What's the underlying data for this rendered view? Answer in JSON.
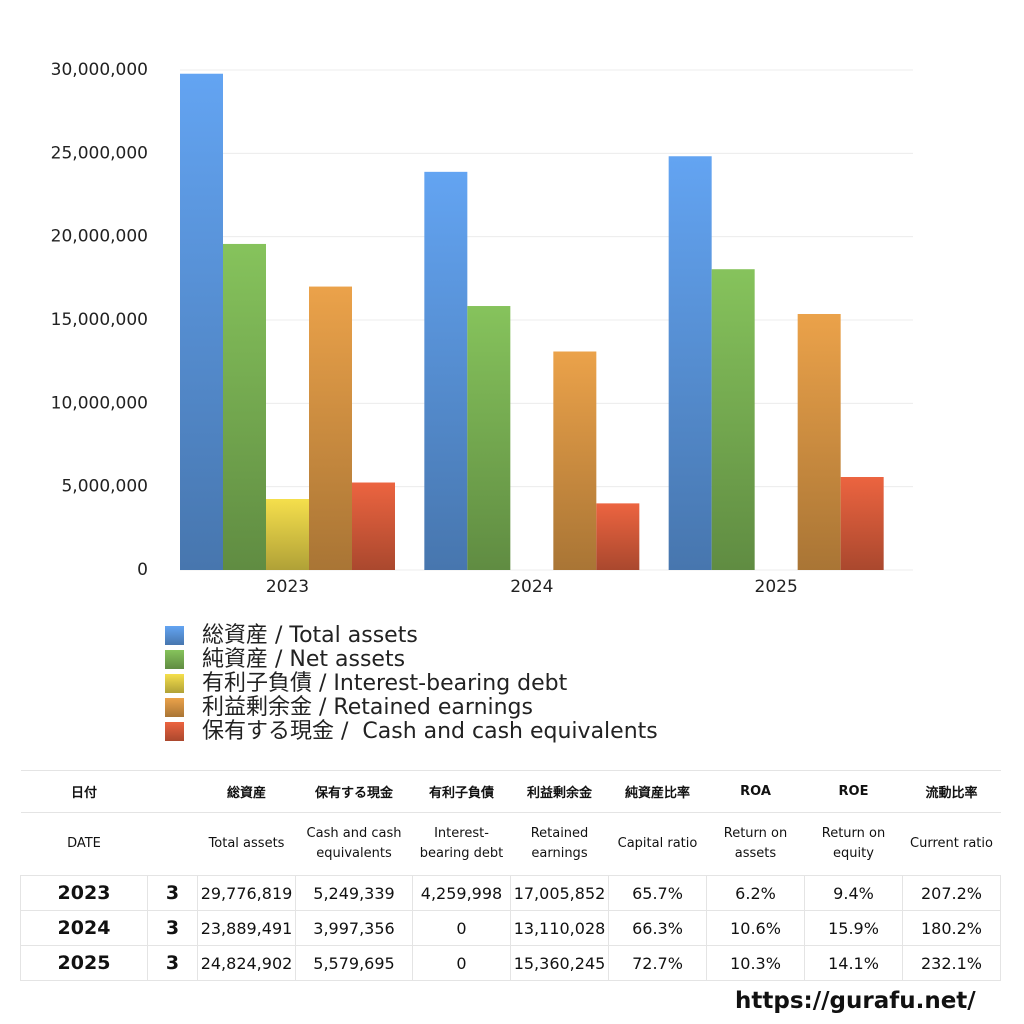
{
  "chart_data": {
    "type": "bar",
    "categories": [
      "2023",
      "2024",
      "2025"
    ],
    "series": [
      {
        "name": "総資産 / Total assets",
        "color": "#63a4f2",
        "values": [
          29776819,
          23889491,
          24824902
        ]
      },
      {
        "name": "純資産 / Net assets",
        "color": "#86c35c",
        "values": [
          19563370,
          15838733,
          18047703
        ]
      },
      {
        "name": "有利子負債 / Interest-bearing debt",
        "color": "#f5df4c",
        "values": [
          4259998,
          0,
          0
        ]
      },
      {
        "name": "利益剰余金 / Retained earnings",
        "color": "#eba24a",
        "values": [
          17005852,
          13110028,
          15360245
        ]
      },
      {
        "name": "保有する現金 /  Cash and cash equivalents",
        "color": "#ec6440",
        "values": [
          5249339,
          3997356,
          5579695
        ]
      }
    ],
    "ylim": [
      0,
      30000000
    ],
    "yticks": [
      0,
      {
        "value": 5000000,
        "label": "5,000,000"
      },
      {
        "value": 10000000,
        "label": "10,000,000"
      },
      {
        "value": 15000000,
        "label": "15,000,000"
      },
      {
        "value": 20000000,
        "label": "20,000,000"
      },
      {
        "value": 25000000,
        "label": "25,000,000"
      },
      {
        "value": 30000000,
        "label": "30,000,000"
      }
    ],
    "grid": true
  },
  "table": {
    "header_jp": {
      "date": "日付",
      "columns": [
        "総資産",
        "保有する現金",
        "有利子負債",
        "利益剰余金",
        "純資産比率",
        "ROA",
        "ROE",
        "流動比率"
      ]
    },
    "header_en": {
      "date": "DATE",
      "columns": [
        "Total assets",
        "Cash and cash equivalents",
        "Interest-bearing debt",
        "Retained earnings",
        "Capital ratio",
        "Return on assets",
        "Return on equity",
        "Current ratio"
      ]
    },
    "rows": [
      {
        "date": "2023",
        "month": "3",
        "cells": [
          "29,776,819",
          "5,249,339",
          "4,259,998",
          "17,005,852",
          "65.7%",
          "6.2%",
          "9.4%",
          "207.2%"
        ]
      },
      {
        "date": "2024",
        "month": "3",
        "cells": [
          "23,889,491",
          "3,997,356",
          "0",
          "13,110,028",
          "66.3%",
          "10.6%",
          "15.9%",
          "180.2%"
        ]
      },
      {
        "date": "2025",
        "month": "3",
        "cells": [
          "24,824,902",
          "5,579,695",
          "0",
          "15,360,245",
          "72.7%",
          "10.3%",
          "14.1%",
          "232.1%"
        ]
      }
    ]
  },
  "footer": "https://gurafu.net/"
}
